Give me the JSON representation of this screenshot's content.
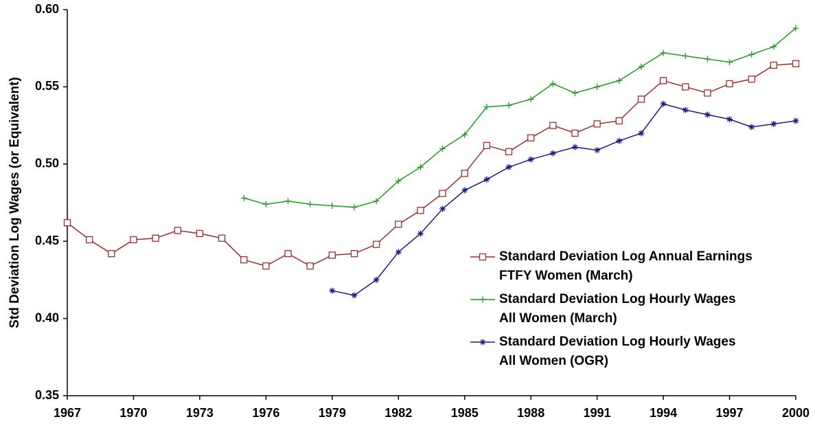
{
  "chart_data": {
    "type": "line",
    "y_label": "Std Deviation Log Wages (or Equivalent)",
    "x": [
      1967,
      1968,
      1969,
      1970,
      1971,
      1972,
      1973,
      1974,
      1975,
      1976,
      1977,
      1978,
      1979,
      1980,
      1981,
      1982,
      1983,
      1984,
      1985,
      1986,
      1987,
      1988,
      1989,
      1990,
      1991,
      1992,
      1993,
      1994,
      1995,
      1996,
      1997,
      1998,
      1999,
      2000
    ],
    "xlim": [
      1967,
      2000
    ],
    "xticks": [
      1967,
      1970,
      1973,
      1976,
      1979,
      1982,
      1985,
      1988,
      1991,
      1994,
      1997,
      2000
    ],
    "ylim": [
      0.35,
      0.6
    ],
    "yticks": [
      0.35,
      {
        "value": 0.4,
        "label": "0.40"
      },
      0.45,
      {
        "value": 0.5,
        "label": "0.50"
      },
      0.55,
      {
        "value": 0.6,
        "label": "0.60"
      }
    ],
    "grid": false,
    "series": [
      {
        "name": "Standard Deviation Log Annual Earnings FTFY Women (March)",
        "color": "#9b2d2d",
        "marker": "square",
        "values": [
          0.462,
          0.451,
          0.442,
          0.451,
          0.452,
          0.457,
          0.455,
          0.452,
          0.438,
          0.434,
          0.442,
          0.434,
          0.441,
          0.442,
          0.448,
          0.461,
          0.47,
          0.481,
          0.494,
          0.512,
          0.508,
          0.517,
          0.525,
          0.52,
          0.526,
          0.528,
          0.542,
          0.554,
          0.55,
          0.546,
          0.552,
          0.555,
          0.564,
          0.565
        ]
      },
      {
        "name": "Standard Deviation Log Hourly Wages All Women (March)",
        "color": "#1f9a1f",
        "marker": "plus",
        "values": [
          null,
          null,
          null,
          null,
          null,
          null,
          null,
          null,
          0.478,
          0.474,
          0.476,
          0.474,
          0.473,
          0.472,
          0.476,
          0.489,
          0.498,
          0.51,
          0.519,
          0.537,
          0.538,
          0.542,
          0.552,
          0.546,
          0.55,
          0.554,
          0.563,
          0.572,
          0.57,
          0.568,
          0.566,
          0.571,
          0.576,
          0.588
        ]
      },
      {
        "name": "Standard Deviation Log Hourly Wages All Women (OGR)",
        "color": "#1a1a8c",
        "marker": "star",
        "values": [
          null,
          null,
          null,
          null,
          null,
          null,
          null,
          null,
          null,
          null,
          null,
          null,
          0.418,
          0.415,
          0.425,
          0.443,
          0.455,
          0.471,
          0.483,
          0.49,
          0.498,
          0.503,
          0.507,
          0.511,
          0.509,
          0.515,
          0.52,
          0.539,
          0.535,
          0.532,
          0.529,
          0.524,
          0.526,
          0.528
        ]
      }
    ],
    "legend": "lower-right"
  }
}
